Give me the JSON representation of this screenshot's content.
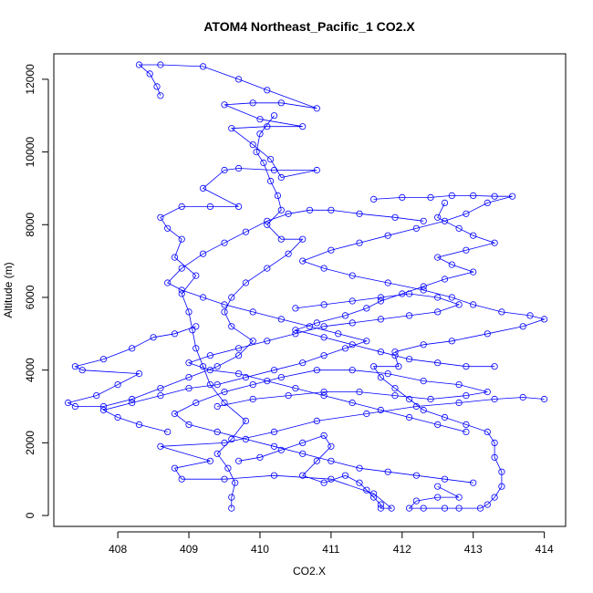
{
  "chart_data": {
    "type": "scatter",
    "title": "ATOM4 Northeast_Pacific_1 CO2.X",
    "xlabel": "CO2.X",
    "ylabel": "Altitude (m)",
    "xlim": [
      407.1,
      414.3
    ],
    "ylim": [
      -300,
      12700
    ],
    "x_ticks": [
      408,
      409,
      410,
      411,
      412,
      413,
      414
    ],
    "y_ticks": [
      0,
      2000,
      4000,
      6000,
      8000,
      10000,
      12000
    ],
    "grid": false,
    "legend": "none",
    "series_color": "#0000ff",
    "marker": "open-circle",
    "connect_points": true,
    "series": [
      {
        "points": [
          [
            409.6,
            200
          ],
          [
            409.6,
            500
          ],
          [
            409.65,
            900
          ],
          [
            409.55,
            1300
          ],
          [
            409.4,
            1700
          ],
          [
            409.6,
            2100
          ],
          [
            409.8,
            2600
          ],
          [
            409.5,
            3100
          ],
          [
            409.3,
            3600
          ],
          [
            409.2,
            4100
          ],
          [
            409.1,
            4600
          ],
          [
            409.05,
            5100
          ],
          [
            409.0,
            5600
          ],
          [
            408.9,
            6100
          ],
          [
            409.1,
            6600
          ],
          [
            408.8,
            7100
          ],
          [
            408.9,
            7600
          ],
          [
            408.7,
            7900
          ],
          [
            408.6,
            8200
          ],
          [
            408.9,
            8500
          ],
          [
            409.3,
            8500
          ],
          [
            409.7,
            8500
          ],
          [
            409.2,
            9000
          ],
          [
            409.5,
            9500
          ],
          [
            409.7,
            9550
          ],
          [
            410.2,
            9500
          ],
          [
            410.8,
            9500
          ],
          [
            410.3,
            9300
          ],
          [
            410.15,
            9800
          ],
          [
            409.9,
            10200
          ],
          [
            409.6,
            10650
          ],
          [
            410.1,
            10700
          ],
          [
            410.6,
            10700
          ],
          [
            410.0,
            10900
          ],
          [
            409.5,
            11300
          ],
          [
            409.9,
            11350
          ],
          [
            410.3,
            11350
          ],
          [
            410.8,
            11200
          ],
          [
            410.1,
            11700
          ],
          [
            409.7,
            12000
          ],
          [
            409.2,
            12350
          ],
          [
            408.6,
            12400
          ],
          [
            408.3,
            12400
          ],
          [
            408.45,
            12150
          ],
          [
            408.55,
            11800
          ],
          [
            408.6,
            11550
          ]
        ]
      },
      {
        "points": [
          [
            410.2,
            11000
          ],
          [
            410.0,
            10500
          ],
          [
            409.95,
            10000
          ],
          [
            410.05,
            9700
          ],
          [
            410.15,
            9200
          ],
          [
            410.25,
            8800
          ],
          [
            410.3,
            8400
          ],
          [
            410.1,
            8000
          ],
          [
            410.3,
            7600
          ],
          [
            410.6,
            7600
          ],
          [
            410.4,
            7200
          ],
          [
            410.1,
            6800
          ],
          [
            409.8,
            6400
          ],
          [
            409.6,
            6000
          ],
          [
            409.5,
            5600
          ],
          [
            409.6,
            5200
          ],
          [
            409.9,
            4800
          ],
          [
            409.7,
            4400
          ],
          [
            409.4,
            4100
          ],
          [
            409.0,
            3800
          ],
          [
            408.6,
            3500
          ],
          [
            408.2,
            3200
          ],
          [
            407.8,
            3000
          ],
          [
            407.4,
            3000
          ],
          [
            407.3,
            3100
          ],
          [
            407.7,
            3300
          ],
          [
            408.0,
            3600
          ],
          [
            408.3,
            3900
          ],
          [
            407.5,
            4000
          ],
          [
            407.4,
            4100
          ],
          [
            407.8,
            4300
          ],
          [
            408.2,
            4600
          ],
          [
            408.5,
            4900
          ],
          [
            408.8,
            5000
          ],
          [
            409.1,
            5200
          ]
        ]
      },
      {
        "points": [
          [
            409.7,
            1500
          ],
          [
            410.0,
            1600
          ],
          [
            410.3,
            1800
          ],
          [
            410.6,
            2000
          ],
          [
            410.9,
            2200
          ],
          [
            411.0,
            1900
          ],
          [
            410.8,
            1500
          ],
          [
            410.6,
            1100
          ],
          [
            410.9,
            900
          ],
          [
            411.2,
            1100
          ],
          [
            411.4,
            900
          ],
          [
            411.5,
            700
          ],
          [
            411.6,
            500
          ],
          [
            411.7,
            300
          ],
          [
            411.7,
            200
          ],
          [
            411.85,
            200
          ],
          [
            411.6,
            600
          ],
          [
            411.0,
            1000
          ],
          [
            410.2,
            1100
          ],
          [
            409.5,
            1000
          ],
          [
            408.9,
            1000
          ],
          [
            408.8,
            1300
          ],
          [
            409.3,
            1500
          ],
          [
            408.6,
            1900
          ],
          [
            409.5,
            2000
          ],
          [
            410.2,
            2300
          ],
          [
            410.8,
            2600
          ],
          [
            411.5,
            2800
          ],
          [
            412.2,
            3000
          ],
          [
            412.8,
            3100
          ],
          [
            413.3,
            3200
          ],
          [
            413.7,
            3250
          ],
          [
            414.0,
            3200
          ]
        ]
      },
      {
        "points": [
          [
            411.9,
            4400
          ],
          [
            411.95,
            4100
          ],
          [
            411.6,
            4100
          ],
          [
            411.7,
            3800
          ],
          [
            411.9,
            3500
          ],
          [
            412.1,
            3200
          ],
          [
            412.3,
            2900
          ],
          [
            412.6,
            2700
          ],
          [
            412.9,
            2500
          ],
          [
            413.2,
            2300
          ],
          [
            413.3,
            2000
          ],
          [
            413.3,
            1600
          ],
          [
            413.4,
            1200
          ],
          [
            413.4,
            800
          ],
          [
            413.3,
            500
          ],
          [
            413.2,
            300
          ],
          [
            413.1,
            200
          ],
          [
            412.8,
            200
          ],
          [
            412.6,
            200
          ],
          [
            412.3,
            200
          ],
          [
            412.1,
            200
          ],
          [
            412.2,
            400
          ],
          [
            412.5,
            500
          ],
          [
            412.8,
            500
          ],
          [
            412.5,
            800
          ]
        ]
      },
      {
        "points": [
          [
            411.6,
            8700
          ],
          [
            412.0,
            8750
          ],
          [
            412.4,
            8750
          ],
          [
            412.7,
            8800
          ],
          [
            413.0,
            8800
          ],
          [
            413.3,
            8780
          ],
          [
            413.55,
            8780
          ],
          [
            413.2,
            8600
          ],
          [
            412.9,
            8300
          ],
          [
            412.6,
            8100
          ],
          [
            412.2,
            7900
          ],
          [
            411.8,
            7700
          ],
          [
            411.4,
            7500
          ],
          [
            411.0,
            7300
          ],
          [
            410.6,
            7000
          ],
          [
            410.9,
            6800
          ],
          [
            411.3,
            6600
          ],
          [
            411.8,
            6400
          ],
          [
            412.3,
            6200
          ],
          [
            412.7,
            6000
          ],
          [
            413.0,
            5800
          ],
          [
            413.4,
            5600
          ],
          [
            413.8,
            5500
          ],
          [
            414.0,
            5400
          ],
          [
            413.7,
            5200
          ],
          [
            413.2,
            5000
          ],
          [
            412.7,
            4800
          ],
          [
            412.3,
            4700
          ],
          [
            411.9,
            4500
          ]
        ]
      },
      {
        "points": [
          [
            412.6,
            8600
          ],
          [
            412.5,
            8200
          ],
          [
            412.8,
            7900
          ],
          [
            413.0,
            7700
          ],
          [
            413.3,
            7500
          ],
          [
            412.9,
            7300
          ],
          [
            412.5,
            7100
          ],
          [
            412.7,
            6900
          ],
          [
            413.0,
            6700
          ],
          [
            412.6,
            6500
          ],
          [
            412.3,
            6300
          ],
          [
            412.0,
            6100
          ],
          [
            411.7,
            5900
          ],
          [
            411.5,
            5700
          ],
          [
            411.2,
            5500
          ],
          [
            410.8,
            5300
          ],
          [
            410.5,
            5100
          ],
          [
            410.9,
            4900
          ],
          [
            411.3,
            4700
          ],
          [
            411.7,
            4500
          ],
          [
            412.1,
            4300
          ],
          [
            412.5,
            4200
          ],
          [
            412.9,
            4100
          ],
          [
            413.3,
            4100
          ]
        ]
      },
      {
        "points": [
          [
            408.7,
            2300
          ],
          [
            408.3,
            2500
          ],
          [
            408.0,
            2700
          ],
          [
            407.8,
            2900
          ],
          [
            408.2,
            3100
          ],
          [
            408.6,
            3300
          ],
          [
            409.0,
            3500
          ],
          [
            409.4,
            3600
          ],
          [
            409.8,
            3800
          ],
          [
            410.2,
            4000
          ],
          [
            410.6,
            4200
          ],
          [
            410.9,
            4400
          ],
          [
            411.2,
            4600
          ],
          [
            411.5,
            4800
          ],
          [
            411.1,
            5000
          ],
          [
            410.7,
            5200
          ],
          [
            410.3,
            5400
          ],
          [
            409.9,
            5600
          ],
          [
            409.5,
            5800
          ],
          [
            409.2,
            6000
          ],
          [
            408.9,
            6200
          ],
          [
            408.7,
            6400
          ],
          [
            408.9,
            6800
          ],
          [
            409.2,
            7200
          ],
          [
            409.5,
            7500
          ],
          [
            409.8,
            7800
          ],
          [
            410.1,
            8100
          ],
          [
            410.4,
            8300
          ],
          [
            410.7,
            8400
          ],
          [
            411.0,
            8400
          ],
          [
            411.4,
            8300
          ],
          [
            411.9,
            8200
          ],
          [
            412.3,
            8100
          ]
        ]
      },
      {
        "points": [
          [
            409.4,
            3000
          ],
          [
            409.9,
            3200
          ],
          [
            410.4,
            3300
          ],
          [
            410.9,
            3400
          ],
          [
            411.4,
            3400
          ],
          [
            411.9,
            3300
          ],
          [
            412.4,
            3200
          ],
          [
            412.9,
            3300
          ],
          [
            413.2,
            3400
          ],
          [
            412.8,
            3600
          ],
          [
            412.3,
            3700
          ],
          [
            411.8,
            3900
          ],
          [
            411.3,
            4000
          ],
          [
            410.8,
            4000
          ],
          [
            410.3,
            3800
          ],
          [
            409.9,
            3600
          ],
          [
            409.5,
            3400
          ],
          [
            409.1,
            3100
          ],
          [
            408.8,
            2800
          ],
          [
            409.0,
            2500
          ],
          [
            409.4,
            2300
          ],
          [
            409.8,
            2100
          ],
          [
            410.2,
            1900
          ],
          [
            410.6,
            1700
          ],
          [
            411.0,
            1500
          ],
          [
            411.4,
            1300
          ],
          [
            411.8,
            1200
          ],
          [
            412.2,
            1100
          ],
          [
            412.6,
            1000
          ],
          [
            413.0,
            900
          ]
        ]
      },
      {
        "points": [
          [
            410.5,
            5700
          ],
          [
            410.9,
            5800
          ],
          [
            411.3,
            5900
          ],
          [
            411.7,
            6000
          ],
          [
            412.1,
            6100
          ],
          [
            412.5,
            6000
          ],
          [
            412.8,
            5800
          ],
          [
            412.5,
            5600
          ],
          [
            412.1,
            5500
          ],
          [
            411.7,
            5400
          ],
          [
            411.3,
            5300
          ],
          [
            410.9,
            5200
          ],
          [
            410.5,
            5000
          ],
          [
            410.1,
            4800
          ],
          [
            409.7,
            4600
          ],
          [
            409.3,
            4400
          ],
          [
            409.0,
            4200
          ],
          [
            409.3,
            4000
          ],
          [
            409.7,
            3900
          ],
          [
            410.1,
            3700
          ],
          [
            410.5,
            3500
          ],
          [
            410.9,
            3300
          ],
          [
            411.3,
            3100
          ],
          [
            411.7,
            2900
          ],
          [
            412.1,
            2700
          ],
          [
            412.5,
            2500
          ],
          [
            412.9,
            2300
          ]
        ]
      }
    ]
  }
}
